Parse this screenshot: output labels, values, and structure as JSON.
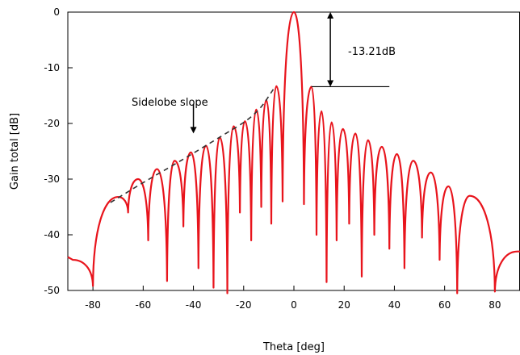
{
  "chart_data": {
    "type": "line",
    "xlabel": "Theta [deg]",
    "ylabel": "Gain total [dB]",
    "xlim": [
      -90,
      90
    ],
    "ylim": [
      -50,
      0
    ],
    "xticks": [
      -80,
      -60,
      -40,
      -20,
      0,
      20,
      40,
      60,
      80
    ],
    "yticks": [
      0,
      -10,
      -20,
      -30,
      -40,
      -50
    ],
    "grid": false,
    "series": [
      {
        "color": "#e8141c",
        "peaks": [
          [
            -88,
            -44.5
          ],
          [
            -70,
            -33.2
          ],
          [
            -62,
            -30.0
          ],
          [
            -54.5,
            -28.2
          ],
          [
            -47.5,
            -26.7
          ],
          [
            -41,
            -25.2
          ],
          [
            -35,
            -24.0
          ],
          [
            -29.5,
            -22.5
          ],
          [
            -24,
            -20.5
          ],
          [
            -19.5,
            -19.6
          ],
          [
            -15,
            -17.5
          ],
          [
            -11,
            -15.8
          ],
          [
            -7,
            -13.3
          ],
          [
            0,
            0
          ],
          [
            7,
            -13.4
          ],
          [
            11,
            -17.8
          ],
          [
            15,
            -19.8
          ],
          [
            19.5,
            -21.0
          ],
          [
            24.5,
            -21.8
          ],
          [
            29.5,
            -23.0
          ],
          [
            35,
            -24.2
          ],
          [
            41,
            -25.5
          ],
          [
            47.5,
            -26.7
          ],
          [
            54.5,
            -28.8
          ],
          [
            61.5,
            -31.3
          ],
          [
            70,
            -33.0
          ],
          [
            89,
            -43.0
          ]
        ],
        "nulls": [
          [
            -80,
            -49.2
          ],
          [
            -66,
            -36
          ],
          [
            -58,
            -41
          ],
          [
            -50.5,
            -48.3
          ],
          [
            -44,
            -38.5
          ],
          [
            -38,
            -46
          ],
          [
            -32,
            -49.5
          ],
          [
            -26.5,
            -50.5
          ],
          [
            -21.5,
            -36
          ],
          [
            -17,
            -41
          ],
          [
            -13,
            -35
          ],
          [
            -9,
            -38
          ],
          [
            -4.5,
            -34
          ],
          [
            4,
            -34.5
          ],
          [
            9,
            -40
          ],
          [
            13,
            -48.5
          ],
          [
            17,
            -41
          ],
          [
            22,
            -38
          ],
          [
            27,
            -47.5
          ],
          [
            32,
            -40
          ],
          [
            38,
            -42.5
          ],
          [
            44,
            -46
          ],
          [
            51,
            -40.5
          ],
          [
            58,
            -44.5
          ],
          [
            65,
            -50.5
          ],
          [
            80,
            -50.2
          ]
        ]
      }
    ],
    "annotations": {
      "sidelobe_label": "Sidelobe slope",
      "level_label": "-13.21dB",
      "slope_curve": [
        [
          -73,
          -34.2
        ],
        [
          -60,
          -30.6
        ],
        [
          -45,
          -26.7
        ],
        [
          -30,
          -22.6
        ],
        [
          -15,
          -18.5
        ],
        [
          -7.5,
          -13.4
        ]
      ],
      "arrow_x": -40,
      "arrow_y": [
        -16.5,
        -21.8
      ],
      "bracket_x": 14.5,
      "bracket_y": [
        0,
        -13.4
      ],
      "hline_x": [
        7,
        38
      ],
      "hline_y": -13.4
    }
  }
}
